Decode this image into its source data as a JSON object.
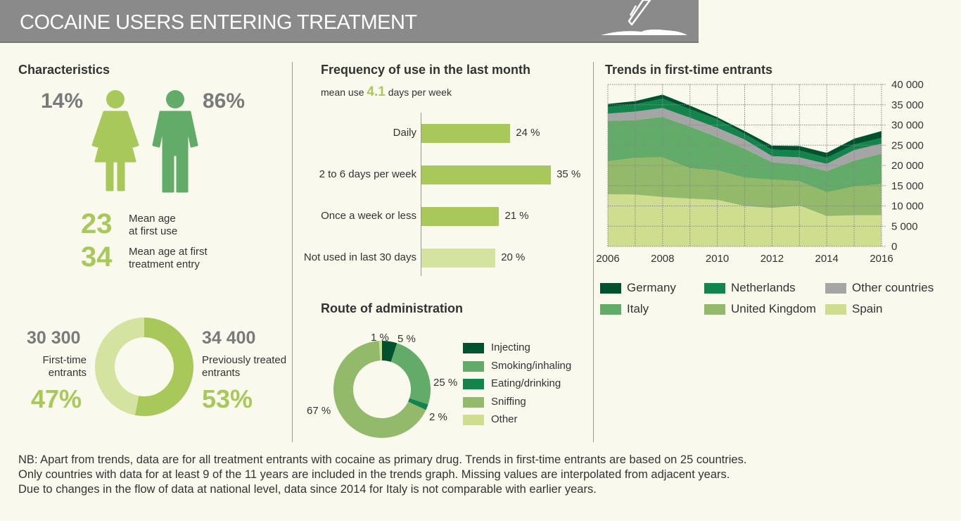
{
  "header": {
    "title": "COCAINE USERS ENTERING TREATMENT",
    "icon": "pencil-book-icon"
  },
  "characteristics": {
    "title": "Characteristics",
    "female_pct": "14%",
    "male_pct": "86%",
    "mean_age_first_use": "23",
    "mean_age_first_use_label_1": "Mean age",
    "mean_age_first_use_label_2": "at first use",
    "mean_age_treatment": "34",
    "mean_age_treatment_label_1": "Mean age at first",
    "mean_age_treatment_label_2": "treatment entry",
    "first_time_count": "30 300",
    "first_time_label_1": "First-time",
    "first_time_label_2": "entrants",
    "first_time_pct": "47%",
    "prev_count": "34 400",
    "prev_label_1": "Previously treated",
    "prev_label_2": "entrants",
    "prev_pct": "53%"
  },
  "frequency": {
    "title": "Frequency of use in the last month",
    "mean_prefix": "mean use",
    "mean_value": "4.1",
    "mean_suffix": "days per week"
  },
  "route": {
    "title": "Route of administration"
  },
  "trends": {
    "title": "Trends in first-time entrants"
  },
  "note": [
    "NB: Apart from trends, data are for all treatment entrants with cocaine as primary drug. Trends in first-time entrants are based on 25 countries.",
    "Only countries with data for at least 9 of the 11 years are included in the trends graph. Missing values are interpolated from adjacent years.",
    "Due to changes in the flow of data at national level, data since 2014 for Italy is not comparable with earlier years."
  ],
  "colors": {
    "light_green": "#d4e3a0",
    "green": "#a8c95a",
    "woman": "#a8c95a",
    "man": "#62ab68"
  },
  "chart_data": [
    {
      "id": "entrants",
      "type": "pie",
      "donut": true,
      "categories": [
        "Previously treated entrants",
        "First-time entrants"
      ],
      "values": [
        53,
        47
      ],
      "colors": [
        "#a8c95a",
        "#d4e3a0"
      ]
    },
    {
      "id": "frequency",
      "type": "bar",
      "orientation": "horizontal",
      "categories": [
        "Daily",
        "2 to 6 days per week",
        "Once a week or less",
        "Not used in last 30 days"
      ],
      "values": [
        24,
        35,
        21,
        20
      ],
      "labels": [
        "24 %",
        "35 %",
        "21 %",
        "20 %"
      ],
      "colors": [
        "#a8c95a",
        "#a8c95a",
        "#a8c95a",
        "#d4e3a0"
      ]
    },
    {
      "id": "route",
      "type": "pie",
      "donut": true,
      "categories": [
        "Injecting",
        "Smoking/inhaling",
        "Eating/drinking",
        "Sniffing",
        "Other"
      ],
      "values": [
        5,
        25,
        2,
        67,
        1
      ],
      "labels": [
        "5 %",
        "25 %",
        "2 %",
        "67 %",
        "1 %"
      ],
      "colors": [
        "#00522f",
        "#62ab68",
        "#13854c",
        "#93b96b",
        "#cfdd8f"
      ]
    },
    {
      "id": "trends",
      "type": "area",
      "stacked": true,
      "x": [
        2006,
        2007,
        2008,
        2009,
        2010,
        2011,
        2012,
        2013,
        2014,
        2015,
        2016
      ],
      "xticks": [
        "2006",
        "2008",
        "2010",
        "2012",
        "2014",
        "2016"
      ],
      "yticks": [
        "0",
        "5 000",
        "10 000",
        "15 000",
        "20 000",
        "25 000",
        "30 000",
        "35 000",
        "40 000"
      ],
      "ylim": [
        0,
        40000
      ],
      "grid": true,
      "legend": "bottom",
      "series": [
        {
          "name": "Spain",
          "color": "#cfdd8f",
          "values": [
            12900,
            12800,
            12200,
            11800,
            11500,
            10000,
            9500,
            10100,
            7500,
            7700,
            7700
          ]
        },
        {
          "name": "United Kingdom",
          "color": "#93b96b",
          "values": [
            8100,
            9100,
            9800,
            7500,
            7300,
            7000,
            7000,
            6000,
            5900,
            7100,
            7700
          ]
        },
        {
          "name": "Italy",
          "color": "#62ab68",
          "values": [
            10000,
            9300,
            10000,
            10300,
            8200,
            7100,
            4300,
            4100,
            5200,
            6400,
            7500
          ]
        },
        {
          "name": "Other countries",
          "color": "#a5a5a5",
          "values": [
            1800,
            2100,
            2200,
            2200,
            2300,
            2300,
            1500,
            1800,
            1800,
            2600,
            2500
          ]
        },
        {
          "name": "Netherlands",
          "color": "#13854c",
          "values": [
            1700,
            1800,
            2300,
            2100,
            2100,
            1400,
            1600,
            1700,
            1500,
            1400,
            1400
          ]
        },
        {
          "name": "Germany",
          "color": "#00522f",
          "values": [
            700,
            800,
            1000,
            900,
            500,
            700,
            1000,
            1100,
            1200,
            1400,
            1700
          ]
        }
      ],
      "legend_order": [
        "Germany",
        "Netherlands",
        "Other countries",
        "Italy",
        "United Kingdom",
        "Spain"
      ]
    }
  ]
}
